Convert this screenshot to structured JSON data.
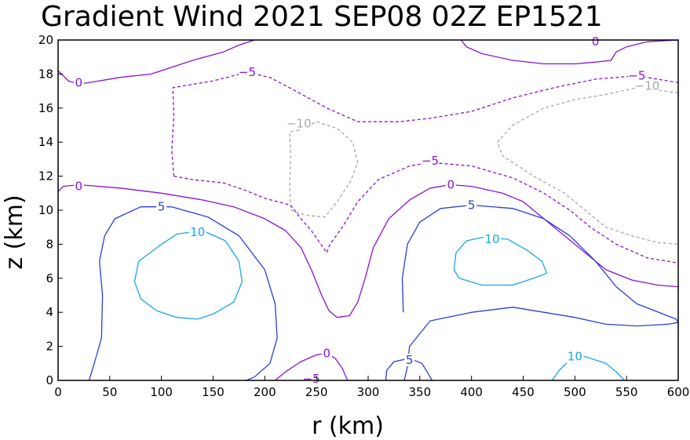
{
  "chart_data": {
    "type": "contour",
    "title": "Gradient Wind 2021 SEP08 02Z  EP1521",
    "xlabel": "r (km)",
    "ylabel": "z (km)",
    "xlim": [
      0,
      600
    ],
    "ylim": [
      0,
      20
    ],
    "xticks": [
      0,
      50,
      100,
      150,
      200,
      250,
      300,
      350,
      400,
      450,
      500,
      550,
      600
    ],
    "yticks": [
      0,
      2,
      4,
      6,
      8,
      10,
      12,
      14,
      16,
      18,
      20
    ],
    "grid": false,
    "contours": [
      {
        "level": 0,
        "color": "#8a12d6",
        "dash": false,
        "label_at": [
          20,
          17.5
        ],
        "points": [
          [
            0,
            18.2
          ],
          [
            10,
            17.6
          ],
          [
            20,
            17.4
          ],
          [
            40,
            17.6
          ],
          [
            60,
            17.8
          ],
          [
            90,
            18.0
          ],
          [
            110,
            18.4
          ],
          [
            130,
            18.8
          ],
          [
            160,
            19.3
          ],
          [
            175,
            19.7
          ],
          [
            190,
            20.0
          ]
        ]
      },
      {
        "level": 0,
        "color": "#8a12d6",
        "dash": false,
        "label_at": [
          520,
          19.9
        ],
        "points": [
          [
            390,
            20.0
          ],
          [
            395,
            19.6
          ],
          [
            410,
            19.2
          ],
          [
            440,
            18.8
          ],
          [
            470,
            18.6
          ],
          [
            500,
            18.6
          ],
          [
            520,
            18.7
          ],
          [
            535,
            18.8
          ],
          [
            540,
            19.3
          ],
          [
            550,
            19.6
          ],
          [
            570,
            19.9
          ],
          [
            600,
            20.0
          ]
        ]
      },
      {
        "level": 0,
        "color": "#8a12d6",
        "dash": false,
        "label_at": [
          20,
          11.4
        ],
        "points": [
          [
            0,
            11.1
          ],
          [
            5,
            11.4
          ],
          [
            20,
            11.5
          ],
          [
            60,
            11.3
          ],
          [
            100,
            11.0
          ],
          [
            140,
            10.6
          ],
          [
            170,
            10.2
          ],
          [
            200,
            9.5
          ],
          [
            220,
            8.8
          ],
          [
            235,
            7.8
          ],
          [
            245,
            6.5
          ],
          [
            255,
            5.0
          ],
          [
            262,
            4.1
          ],
          [
            270,
            3.7
          ],
          [
            282,
            3.8
          ],
          [
            290,
            4.6
          ],
          [
            297,
            6.0
          ],
          [
            305,
            7.8
          ],
          [
            320,
            9.5
          ],
          [
            340,
            10.6
          ],
          [
            360,
            11.3
          ],
          [
            380,
            11.5
          ],
          [
            400,
            11.4
          ],
          [
            430,
            11.0
          ],
          [
            450,
            10.5
          ],
          [
            470,
            9.5
          ],
          [
            490,
            8.5
          ],
          [
            510,
            7.5
          ],
          [
            530,
            6.5
          ],
          [
            555,
            5.9
          ],
          [
            580,
            5.6
          ],
          [
            600,
            5.5
          ]
        ]
      },
      {
        "level": 0,
        "color": "#8a12d6",
        "dash": false,
        "label_at": [
          253,
          1.5
        ],
        "points": [
          [
            210,
            0
          ],
          [
            220,
            0.5
          ],
          [
            235,
            1.1
          ],
          [
            250,
            1.5
          ],
          [
            260,
            1.6
          ],
          [
            268,
            1.3
          ],
          [
            275,
            0.7
          ],
          [
            280,
            0
          ]
        ]
      },
      {
        "level": 5,
        "color": "#2a3fd8",
        "dash": false,
        "label_at": [
          100,
          10.2
        ],
        "points": [
          [
            30,
            0
          ],
          [
            35,
            1.0
          ],
          [
            42,
            2.5
          ],
          [
            43,
            5.0
          ],
          [
            40,
            7.0
          ],
          [
            45,
            8.5
          ],
          [
            55,
            9.5
          ],
          [
            80,
            10.2
          ],
          [
            110,
            10.2
          ],
          [
            145,
            9.6
          ],
          [
            175,
            8.5
          ],
          [
            200,
            6.5
          ],
          [
            210,
            4.5
          ],
          [
            212,
            2.5
          ],
          [
            205,
            1.0
          ],
          [
            190,
            0.2
          ],
          [
            182,
            0
          ]
        ]
      },
      {
        "level": 5,
        "color": "#2a3fd8",
        "dash": false,
        "label_at": [
          400,
          10.3
        ],
        "points": [
          [
            335,
            0
          ],
          [
            338,
            0.8
          ],
          [
            340,
            2.0
          ],
          [
            360,
            3.5
          ],
          [
            400,
            4.0
          ],
          [
            440,
            4.3
          ],
          [
            470,
            4.0
          ],
          [
            500,
            3.7
          ],
          [
            530,
            3.3
          ],
          [
            560,
            3.2
          ],
          [
            590,
            3.3
          ],
          [
            600,
            3.4
          ],
          [
            598,
            3.6
          ],
          [
            560,
            4.5
          ],
          [
            540,
            5.5
          ],
          [
            520,
            7.0
          ],
          [
            495,
            8.5
          ],
          [
            470,
            9.5
          ],
          [
            440,
            10.1
          ],
          [
            400,
            10.3
          ],
          [
            370,
            10.1
          ],
          [
            350,
            9.3
          ],
          [
            338,
            8.0
          ],
          [
            333,
            6.0
          ],
          [
            334,
            4.0
          ]
        ]
      },
      {
        "level": 5,
        "color": "#2a3fd8",
        "dash": false,
        "label_at": [
          340,
          1.2
        ],
        "points": [
          [
            317,
            0
          ],
          [
            318,
            0.6
          ],
          [
            325,
            1.1
          ],
          [
            340,
            1.3
          ],
          [
            352,
            1.0
          ],
          [
            358,
            0.4
          ],
          [
            362,
            0
          ]
        ]
      },
      {
        "level": 10,
        "color": "#1aa6e8",
        "dash": false,
        "label_at": [
          135,
          8.7
        ],
        "points": [
          [
            100,
            8.0
          ],
          [
            78,
            7.0
          ],
          [
            74,
            5.8
          ],
          [
            80,
            4.8
          ],
          [
            95,
            4.1
          ],
          [
            115,
            3.7
          ],
          [
            135,
            3.6
          ],
          [
            150,
            3.9
          ],
          [
            170,
            4.6
          ],
          [
            178,
            5.8
          ],
          [
            175,
            7.0
          ],
          [
            162,
            8.2
          ],
          [
            140,
            8.8
          ],
          [
            115,
            8.6
          ],
          [
            100,
            8.0
          ]
        ]
      },
      {
        "level": 10,
        "color": "#1aa6e8",
        "dash": false,
        "label_at": [
          420,
          8.3
        ],
        "points": [
          [
            395,
            8.2
          ],
          [
            385,
            7.5
          ],
          [
            383,
            6.5
          ],
          [
            388,
            6.0
          ],
          [
            410,
            5.6
          ],
          [
            440,
            5.6
          ],
          [
            460,
            6.0
          ],
          [
            473,
            6.3
          ],
          [
            468,
            7.0
          ],
          [
            455,
            7.6
          ],
          [
            435,
            8.3
          ],
          [
            410,
            8.4
          ],
          [
            395,
            8.2
          ]
        ]
      },
      {
        "level": 10,
        "color": "#1aa6e8",
        "dash": false,
        "label_at": [
          500,
          1.4
        ],
        "points": [
          [
            478,
            0
          ],
          [
            485,
            0.6
          ],
          [
            495,
            1.2
          ],
          [
            510,
            1.4
          ],
          [
            530,
            1.0
          ],
          [
            540,
            0.5
          ],
          [
            548,
            0
          ]
        ]
      },
      {
        "level": -5,
        "color": "#8a12d6",
        "dash": true,
        "label_at": [
          183,
          18.1
        ],
        "points": [
          [
            112,
            12.0
          ],
          [
            110,
            13.5
          ],
          [
            112,
            15.5
          ],
          [
            111,
            17.2
          ],
          [
            150,
            17.6
          ],
          [
            183,
            18.1
          ],
          [
            205,
            17.8
          ],
          [
            230,
            17.0
          ],
          [
            260,
            16.0
          ],
          [
            290,
            15.2
          ],
          [
            330,
            15.2
          ],
          [
            360,
            15.4
          ],
          [
            400,
            15.8
          ],
          [
            440,
            16.6
          ],
          [
            480,
            17.2
          ],
          [
            520,
            17.7
          ],
          [
            560,
            17.9
          ],
          [
            600,
            17.5
          ]
        ]
      },
      {
        "level": -5,
        "color": "#8a12d6",
        "dash": true,
        "label_at": [
          560,
          17.9
        ],
        "points": []
      },
      {
        "level": -5,
        "color": "#8a12d6",
        "dash": true,
        "label_at": [
          360,
          12.9
        ],
        "points": [
          [
            112,
            12.0
          ],
          [
            130,
            11.8
          ],
          [
            160,
            11.6
          ],
          [
            180,
            11.2
          ],
          [
            200,
            10.7
          ],
          [
            225,
            10.3
          ],
          [
            235,
            9.5
          ],
          [
            245,
            8.8
          ],
          [
            260,
            7.5
          ],
          [
            263,
            8.0
          ],
          [
            275,
            9.0
          ],
          [
            290,
            10.5
          ],
          [
            310,
            11.8
          ],
          [
            340,
            12.6
          ],
          [
            360,
            12.8
          ],
          [
            400,
            12.6
          ],
          [
            440,
            11.9
          ],
          [
            470,
            11.0
          ],
          [
            495,
            10.0
          ],
          [
            515,
            9.0
          ],
          [
            540,
            8.0
          ],
          [
            570,
            7.2
          ],
          [
            600,
            6.9
          ]
        ]
      },
      {
        "level": -10,
        "color": "#a9a9a9",
        "dash": true,
        "label_at": [
          233,
          15.1
        ],
        "points": [
          [
            233,
            14.7
          ],
          [
            224,
            14.6
          ],
          [
            225,
            13.0
          ],
          [
            224,
            11.5
          ],
          [
            225,
            10.0
          ],
          [
            240,
            9.7
          ],
          [
            258,
            9.6
          ],
          [
            270,
            10.5
          ],
          [
            283,
            11.7
          ],
          [
            290,
            12.8
          ],
          [
            285,
            14.0
          ],
          [
            270,
            14.8
          ],
          [
            250,
            15.2
          ],
          [
            233,
            14.7
          ]
        ]
      },
      {
        "level": -10,
        "color": "#a9a9a9",
        "dash": true,
        "label_at": [
          570,
          17.3
        ],
        "points": [
          [
            600,
            16.9
          ],
          [
            560,
            17.2
          ],
          [
            530,
            16.8
          ],
          [
            500,
            16.5
          ],
          [
            470,
            16.0
          ],
          [
            440,
            15.0
          ],
          [
            425,
            14.0
          ],
          [
            430,
            13.2
          ],
          [
            460,
            12.0
          ],
          [
            490,
            11.0
          ],
          [
            510,
            10.0
          ],
          [
            530,
            9.0
          ],
          [
            555,
            8.5
          ],
          [
            580,
            8.1
          ],
          [
            600,
            8.0
          ]
        ]
      }
    ],
    "contour_labels": [
      {
        "text": "0",
        "x": 20,
        "y": 17.5,
        "color": "#8a12d6"
      },
      {
        "text": "0",
        "x": 520,
        "y": 19.9,
        "color": "#8a12d6"
      },
      {
        "text": "0",
        "x": 20,
        "y": 11.4,
        "color": "#8a12d6"
      },
      {
        "text": "0",
        "x": 380,
        "y": 11.5,
        "color": "#8a12d6"
      },
      {
        "text": "0",
        "x": 260,
        "y": 1.6,
        "color": "#8a12d6"
      },
      {
        "text": "5",
        "x": 100,
        "y": 10.2,
        "color": "#2a3fd8"
      },
      {
        "text": "5",
        "x": 400,
        "y": 10.3,
        "color": "#2a3fd8"
      },
      {
        "text": "5",
        "x": 340,
        "y": 1.2,
        "color": "#2a3fd8"
      },
      {
        "text": "10",
        "x": 135,
        "y": 8.7,
        "color": "#1aa6e8"
      },
      {
        "text": "10",
        "x": 420,
        "y": 8.3,
        "color": "#1aa6e8"
      },
      {
        "text": "10",
        "x": 500,
        "y": 1.4,
        "color": "#1aa6e8"
      },
      {
        "text": "-5",
        "x": 183,
        "y": 18.1,
        "color": "#8a12d6"
      },
      {
        "text": "-5",
        "x": 560,
        "y": 17.9,
        "color": "#8a12d6"
      },
      {
        "text": "-5",
        "x": 360,
        "y": 12.9,
        "color": "#8a12d6"
      },
      {
        "text": "-5",
        "x": 245,
        "y": 0.1,
        "color": "#8a12d6"
      },
      {
        "text": "-10",
        "x": 233,
        "y": 15.1,
        "color": "#a9a9a9"
      },
      {
        "text": "-10",
        "x": 570,
        "y": 17.3,
        "color": "#a9a9a9"
      }
    ]
  }
}
